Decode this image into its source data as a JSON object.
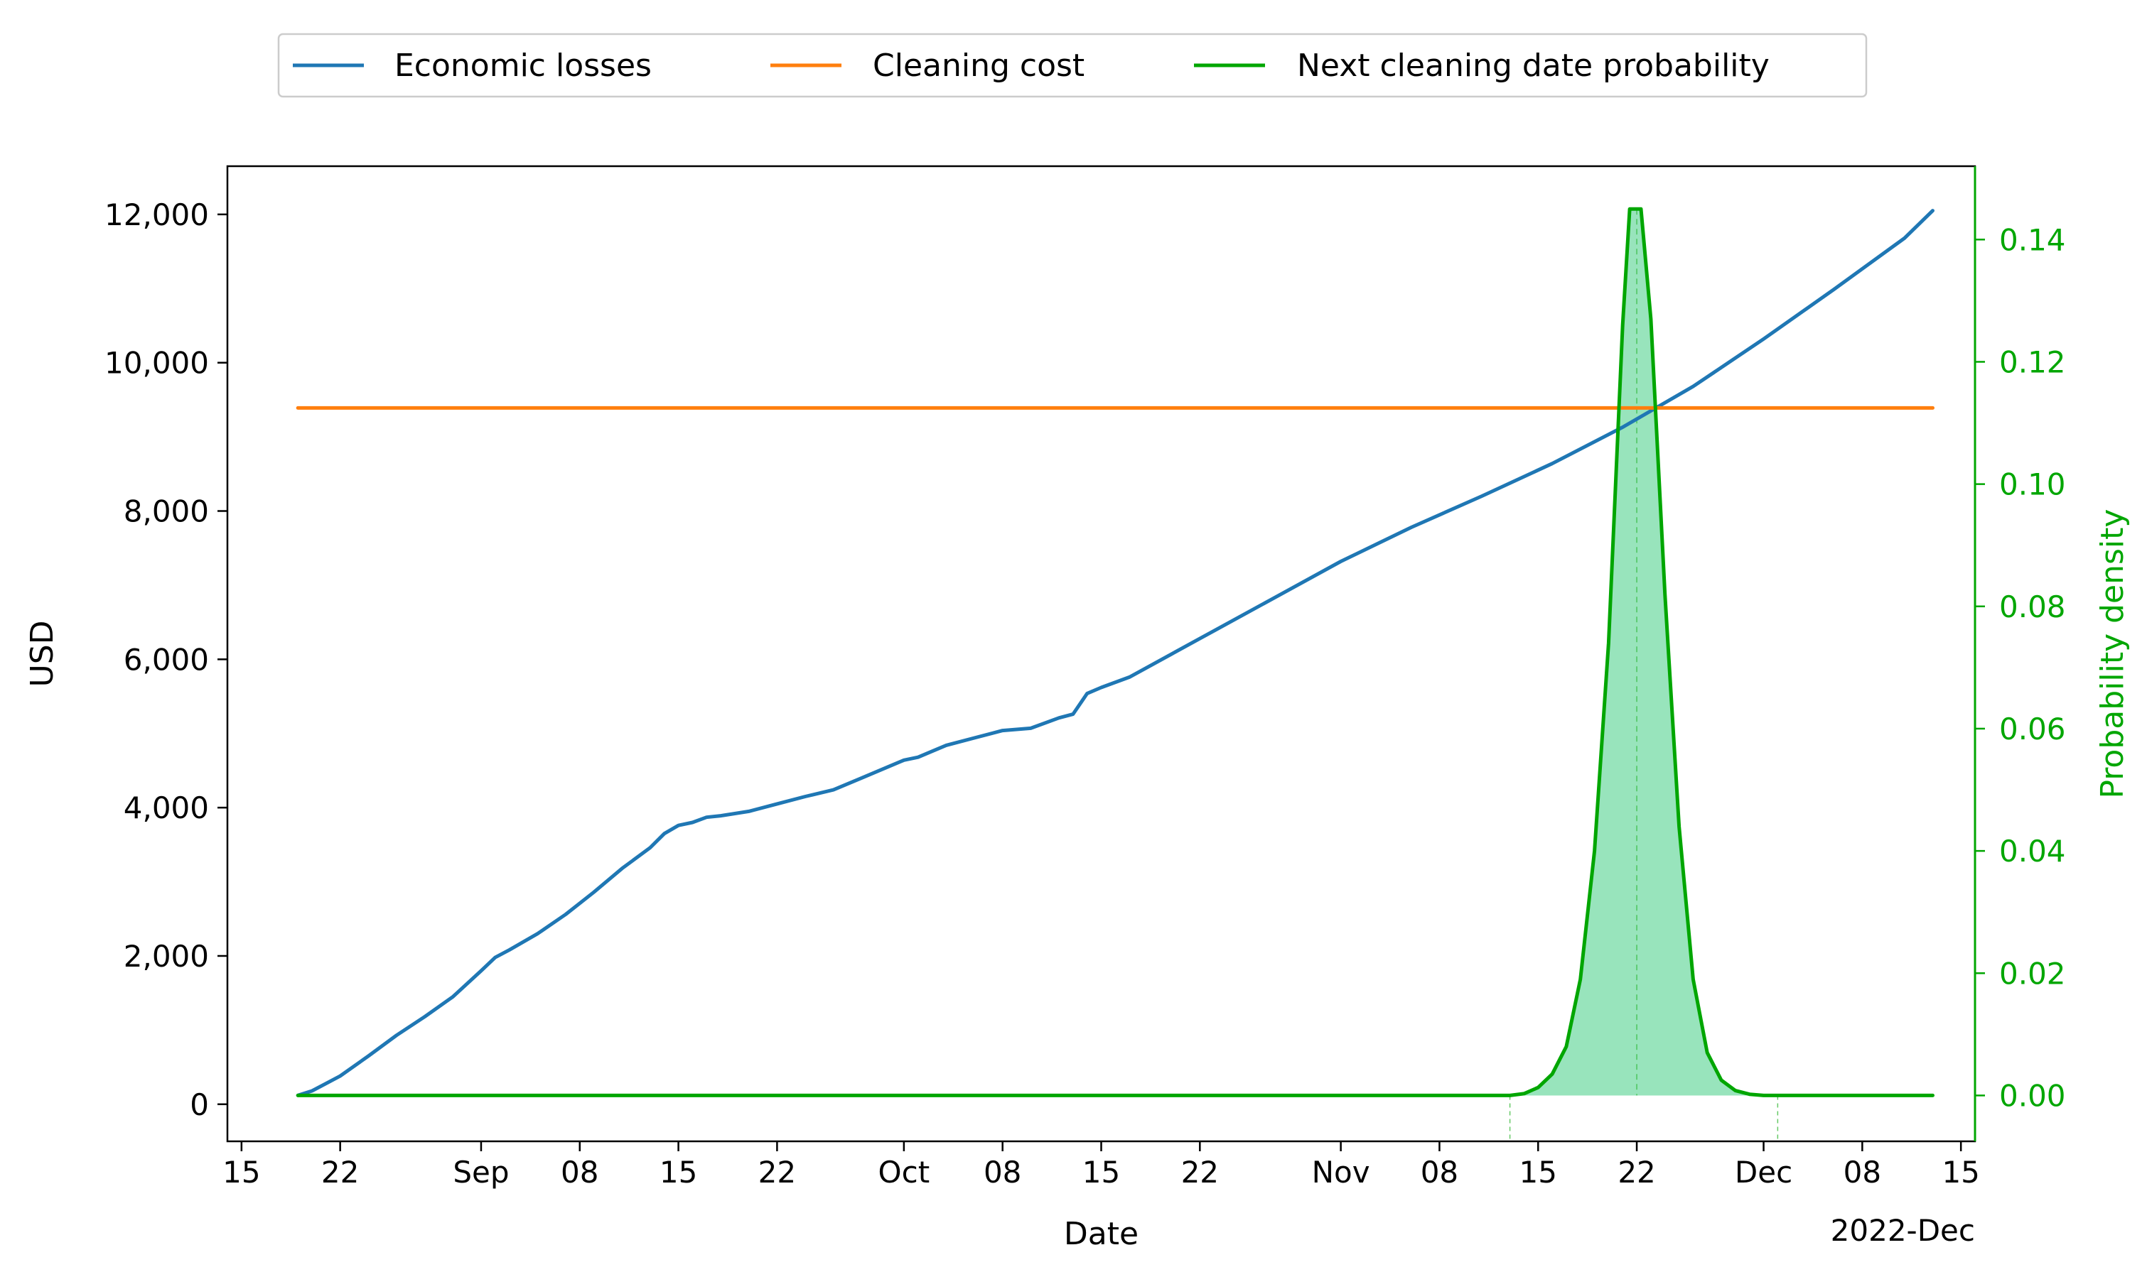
{
  "chart_data": {
    "type": "line",
    "legend_position": "top-center, outside plot",
    "xlabel": "Date",
    "x_offset_label": "2022-Dec",
    "ylabel": "USD",
    "y2label": "Probability density",
    "xlim": [
      "2022-08-14",
      "2022-12-16"
    ],
    "ylim": [
      -500,
      12650
    ],
    "y2lim": [
      -0.0075,
      0.152
    ],
    "grid": false,
    "x_ticks": [
      {
        "date": "2022-08-15",
        "label": "15"
      },
      {
        "date": "2022-08-22",
        "label": "22"
      },
      {
        "date": "2022-09-01",
        "label": "Sep"
      },
      {
        "date": "2022-09-08",
        "label": "08"
      },
      {
        "date": "2022-09-15",
        "label": "15"
      },
      {
        "date": "2022-09-22",
        "label": "22"
      },
      {
        "date": "2022-10-01",
        "label": "Oct"
      },
      {
        "date": "2022-10-08",
        "label": "08"
      },
      {
        "date": "2022-10-15",
        "label": "15"
      },
      {
        "date": "2022-10-22",
        "label": "22"
      },
      {
        "date": "2022-11-01",
        "label": "Nov"
      },
      {
        "date": "2022-11-08",
        "label": "08"
      },
      {
        "date": "2022-11-15",
        "label": "15"
      },
      {
        "date": "2022-11-22",
        "label": "22"
      },
      {
        "date": "2022-12-01",
        "label": "Dec"
      },
      {
        "date": "2022-12-08",
        "label": "08"
      },
      {
        "date": "2022-12-15",
        "label": "15"
      }
    ],
    "y_ticks": [
      {
        "value": 0,
        "label": "0"
      },
      {
        "value": 2000,
        "label": "2,000"
      },
      {
        "value": 4000,
        "label": "4,000"
      },
      {
        "value": 6000,
        "label": "6,000"
      },
      {
        "value": 8000,
        "label": "8,000"
      },
      {
        "value": 10000,
        "label": "10,000"
      },
      {
        "value": 12000,
        "label": "12,000"
      }
    ],
    "y2_ticks": [
      {
        "value": 0.0,
        "label": "0.00"
      },
      {
        "value": 0.02,
        "label": "0.02"
      },
      {
        "value": 0.04,
        "label": "0.04"
      },
      {
        "value": 0.06,
        "label": "0.06"
      },
      {
        "value": 0.08,
        "label": "0.08"
      },
      {
        "value": 0.1,
        "label": "0.10"
      },
      {
        "value": 0.12,
        "label": "0.12"
      },
      {
        "value": 0.14,
        "label": "0.14"
      }
    ],
    "series": [
      {
        "name": "Economic losses",
        "axis": "left",
        "color": "#1f77b4",
        "points": [
          [
            "2022-08-19",
            120
          ],
          [
            "2022-08-20",
            180
          ],
          [
            "2022-08-22",
            380
          ],
          [
            "2022-08-24",
            650
          ],
          [
            "2022-08-26",
            930
          ],
          [
            "2022-08-28",
            1180
          ],
          [
            "2022-08-30",
            1450
          ],
          [
            "2022-09-01",
            1800
          ],
          [
            "2022-09-02",
            1980
          ],
          [
            "2022-09-03",
            2080
          ],
          [
            "2022-09-05",
            2300
          ],
          [
            "2022-09-07",
            2560
          ],
          [
            "2022-09-09",
            2860
          ],
          [
            "2022-09-11",
            3180
          ],
          [
            "2022-09-13",
            3460
          ],
          [
            "2022-09-14",
            3650
          ],
          [
            "2022-09-15",
            3760
          ],
          [
            "2022-09-16",
            3800
          ],
          [
            "2022-09-17",
            3870
          ],
          [
            "2022-09-18",
            3890
          ],
          [
            "2022-09-20",
            3950
          ],
          [
            "2022-09-22",
            4050
          ],
          [
            "2022-09-24",
            4150
          ],
          [
            "2022-09-26",
            4240
          ],
          [
            "2022-09-28",
            4400
          ],
          [
            "2022-09-30",
            4560
          ],
          [
            "2022-10-01",
            4640
          ],
          [
            "2022-10-02",
            4680
          ],
          [
            "2022-10-03",
            4760
          ],
          [
            "2022-10-04",
            4840
          ],
          [
            "2022-10-06",
            4940
          ],
          [
            "2022-10-08",
            5040
          ],
          [
            "2022-10-10",
            5070
          ],
          [
            "2022-10-12",
            5210
          ],
          [
            "2022-10-13",
            5260
          ],
          [
            "2022-10-14",
            5540
          ],
          [
            "2022-10-15",
            5620
          ],
          [
            "2022-10-17",
            5760
          ],
          [
            "2022-10-22",
            6280
          ],
          [
            "2022-10-27",
            6800
          ],
          [
            "2022-11-01",
            7320
          ],
          [
            "2022-11-06",
            7780
          ],
          [
            "2022-11-11",
            8200
          ],
          [
            "2022-11-16",
            8640
          ],
          [
            "2022-11-21",
            9130
          ],
          [
            "2022-11-26",
            9680
          ],
          [
            "2022-12-01",
            10320
          ],
          [
            "2022-12-06",
            10990
          ],
          [
            "2022-12-11",
            11680
          ],
          [
            "2022-12-13",
            12050
          ]
        ]
      },
      {
        "name": "Cleaning cost",
        "axis": "left",
        "color": "#ff7f0e",
        "points": [
          [
            "2022-08-19",
            9390
          ],
          [
            "2022-12-13",
            9390
          ]
        ]
      },
      {
        "name": "Next cleaning date probability",
        "axis": "right",
        "color": "#00a600",
        "fill_color": "#98e4bc",
        "fill_range": [
          "2022-11-13",
          "2022-12-02"
        ],
        "peak_date": "2022-11-22",
        "points": [
          [
            "2022-08-19",
            0.0
          ],
          [
            "2022-11-13",
            0.0
          ],
          [
            "2022-11-14",
            0.0003
          ],
          [
            "2022-11-15",
            0.0013
          ],
          [
            "2022-11-16",
            0.0035
          ],
          [
            "2022-11-17",
            0.008
          ],
          [
            "2022-11-18",
            0.019
          ],
          [
            "2022-11-19",
            0.04
          ],
          [
            "2022-11-20",
            0.074
          ],
          [
            "2022-11-21",
            0.126
          ],
          [
            "2022-11-21.5",
            0.145
          ],
          [
            "2022-11-22.3",
            0.145
          ],
          [
            "2022-11-23",
            0.127
          ],
          [
            "2022-11-24",
            0.082
          ],
          [
            "2022-11-25",
            0.044
          ],
          [
            "2022-11-26",
            0.019
          ],
          [
            "2022-11-27",
            0.007
          ],
          [
            "2022-11-28",
            0.0025
          ],
          [
            "2022-11-29",
            0.0008
          ],
          [
            "2022-11-30",
            0.0002
          ],
          [
            "2022-12-01",
            0.0
          ],
          [
            "2022-12-13",
            0.0
          ]
        ]
      }
    ]
  }
}
